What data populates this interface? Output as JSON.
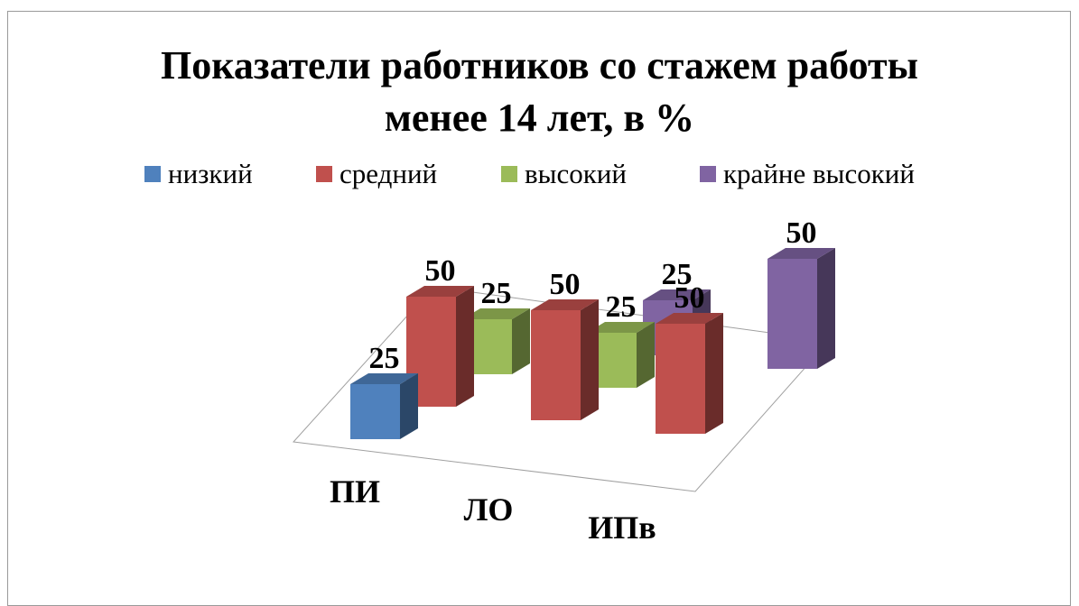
{
  "chart_data": {
    "type": "bar3d",
    "title": "Показатели работников со стажем работы менее 14 лет, в %",
    "categories": [
      "ПИ",
      "ЛО",
      "ИПв"
    ],
    "series": [
      {
        "name": "низкий",
        "color": "#4f81bd",
        "values": [
          25,
          null,
          null
        ]
      },
      {
        "name": "средний",
        "color": "#c0504d",
        "values": [
          50,
          50,
          50
        ]
      },
      {
        "name": "высокий",
        "color": "#9bbb59",
        "values": [
          25,
          25,
          null
        ]
      },
      {
        "name": "крайне высокий",
        "color": "#8064a2",
        "values": [
          null,
          25,
          50
        ]
      }
    ],
    "legend": "top"
  }
}
